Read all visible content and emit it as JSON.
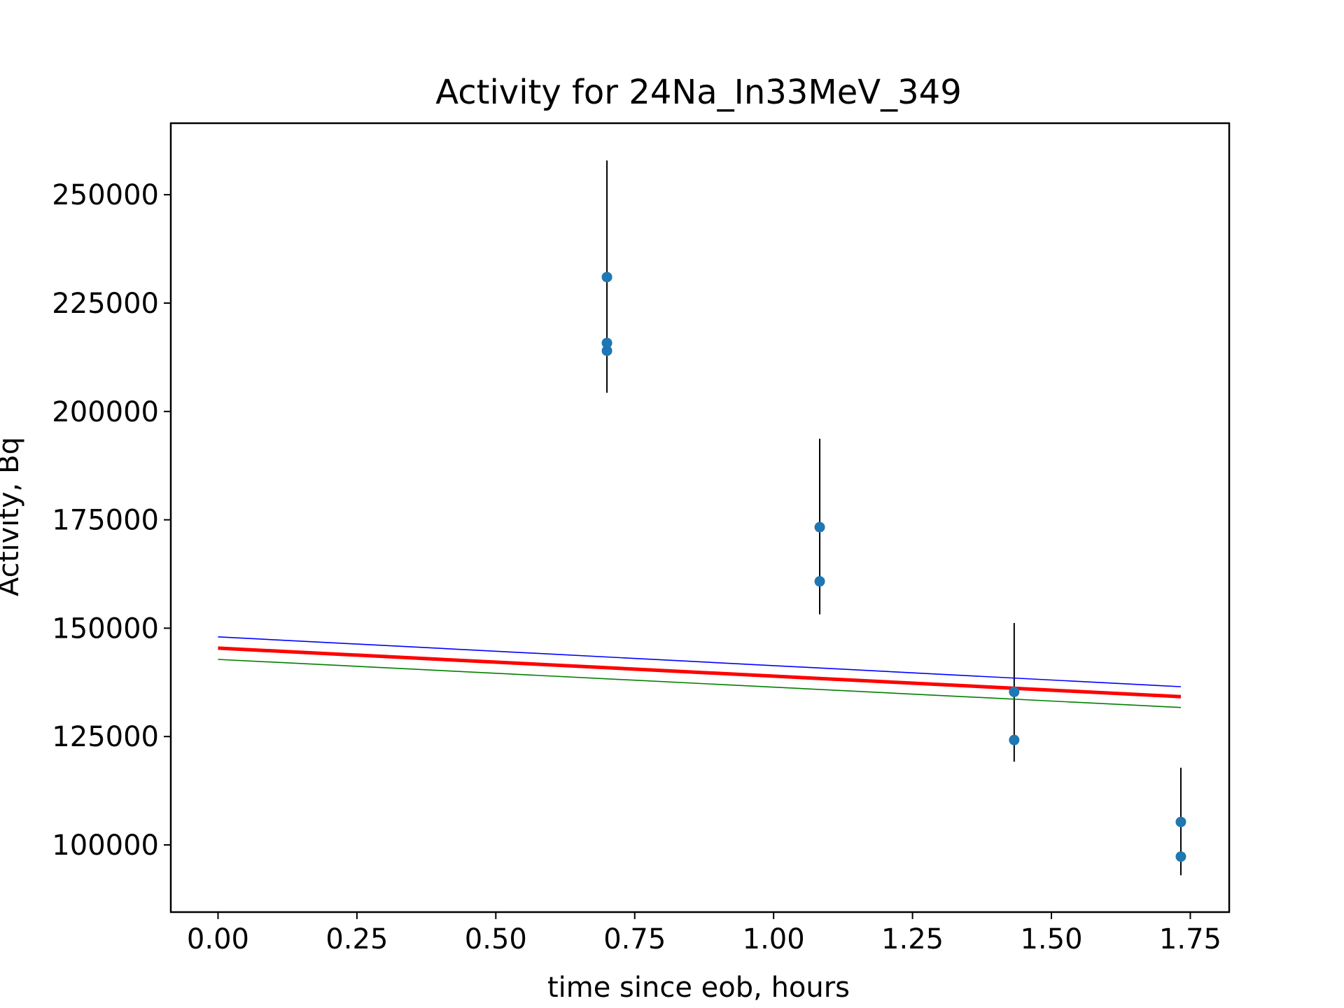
{
  "chart_data": {
    "type": "scatter",
    "title": "Activity for 24Na_In33MeV_349",
    "xlabel": "time since eob, hours",
    "ylabel": "Activity, Bq",
    "xlim": [
      -0.085,
      1.82
    ],
    "ylim": [
      84500,
      266500
    ],
    "xticks": [
      0.0,
      0.25,
      0.5,
      0.75,
      1.0,
      1.25,
      1.5,
      1.75
    ],
    "xtick_labels": [
      "0.00",
      "0.25",
      "0.50",
      "0.75",
      "1.00",
      "1.25",
      "1.50",
      "1.75"
    ],
    "yticks": [
      100000,
      125000,
      150000,
      175000,
      200000,
      225000,
      250000
    ],
    "ytick_labels": [
      "100000",
      "125000",
      "150000",
      "175000",
      "200000",
      "225000",
      "250000"
    ],
    "grid": false,
    "legend": "none",
    "points": {
      "color": "#1f77b4",
      "x": [
        0.7,
        0.7,
        0.7,
        1.083,
        1.083,
        1.433,
        1.433,
        1.733,
        1.733
      ],
      "y": [
        231000,
        215800,
        214000,
        173300,
        160800,
        135300,
        124200,
        105300,
        97300
      ]
    },
    "error_bars": {
      "color": "#000000",
      "bars": [
        {
          "x": 0.7,
          "low": 204300,
          "high": 257900
        },
        {
          "x": 1.083,
          "low": 153200,
          "high": 193700
        },
        {
          "x": 1.433,
          "low": 119200,
          "high": 151200
        },
        {
          "x": 1.733,
          "low": 93000,
          "high": 117800
        }
      ]
    },
    "lines": [
      {
        "color": "#0000ff",
        "x": [
          0.0,
          1.733
        ],
        "y": [
          148000,
          136500
        ]
      },
      {
        "color": "#ff0000",
        "x": [
          0.0,
          1.733
        ],
        "y": [
          145400,
          134200
        ]
      },
      {
        "color": "#008000",
        "x": [
          0.0,
          1.733
        ],
        "y": [
          142800,
          131700
        ]
      }
    ]
  }
}
